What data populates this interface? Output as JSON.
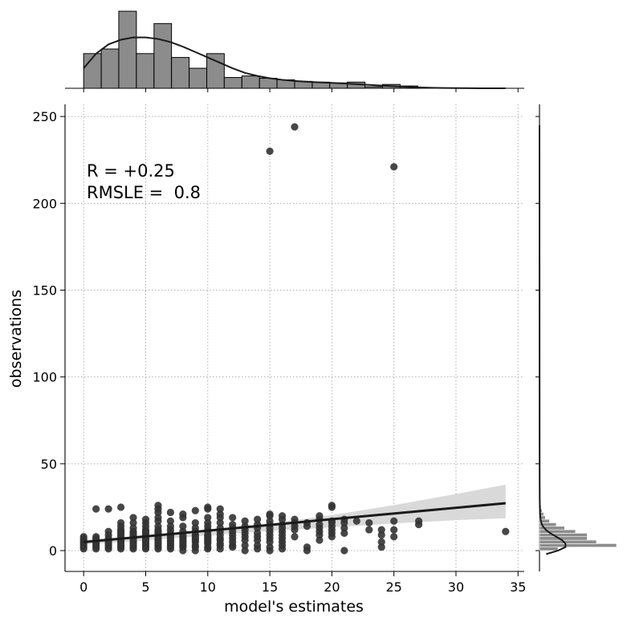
{
  "chart_data": {
    "type": "scatter",
    "xlabel": "model's estimates",
    "ylabel": "observations",
    "xlim": [
      -1.5,
      35.5
    ],
    "ylim": [
      -12,
      257
    ],
    "xticks": [
      0,
      5,
      10,
      15,
      20,
      25,
      30,
      35
    ],
    "yticks": [
      0,
      50,
      100,
      150,
      200,
      250
    ],
    "grid": true,
    "annotations": [
      "R = +0.25",
      "RMSLE =  0.8"
    ],
    "colors": {
      "points": "#333333",
      "line": "#1a1a1a",
      "band": "#d9d9d9",
      "hist": "#8c8c8c",
      "edge": "#000000"
    },
    "points": [
      [
        0,
        1
      ],
      [
        0,
        2
      ],
      [
        0,
        3
      ],
      [
        0,
        4
      ],
      [
        0,
        5
      ],
      [
        0,
        6
      ],
      [
        0,
        7
      ],
      [
        0,
        8
      ],
      [
        1,
        1
      ],
      [
        1,
        2
      ],
      [
        1,
        3
      ],
      [
        1,
        4
      ],
      [
        1,
        5
      ],
      [
        1,
        6
      ],
      [
        1,
        7
      ],
      [
        1,
        8
      ],
      [
        1,
        24
      ],
      [
        2,
        1
      ],
      [
        2,
        2
      ],
      [
        2,
        3
      ],
      [
        2,
        4
      ],
      [
        2,
        5
      ],
      [
        2,
        6
      ],
      [
        2,
        7
      ],
      [
        2,
        9
      ],
      [
        2,
        11
      ],
      [
        2,
        24
      ],
      [
        3,
        1
      ],
      [
        3,
        2
      ],
      [
        3,
        3
      ],
      [
        3,
        4
      ],
      [
        3,
        5
      ],
      [
        3,
        6
      ],
      [
        3,
        7
      ],
      [
        3,
        8
      ],
      [
        3,
        9
      ],
      [
        3,
        10
      ],
      [
        3,
        11
      ],
      [
        3,
        12
      ],
      [
        3,
        14
      ],
      [
        3,
        16
      ],
      [
        3,
        25
      ],
      [
        4,
        1
      ],
      [
        4,
        2
      ],
      [
        4,
        3
      ],
      [
        4,
        4
      ],
      [
        4,
        5
      ],
      [
        4,
        6
      ],
      [
        4,
        7
      ],
      [
        4,
        8
      ],
      [
        4,
        9
      ],
      [
        4,
        10
      ],
      [
        4,
        11
      ],
      [
        4,
        13
      ],
      [
        4,
        16
      ],
      [
        4,
        19
      ],
      [
        5,
        1
      ],
      [
        5,
        2
      ],
      [
        5,
        3
      ],
      [
        5,
        4
      ],
      [
        5,
        5
      ],
      [
        5,
        6
      ],
      [
        5,
        7
      ],
      [
        5,
        8
      ],
      [
        5,
        9
      ],
      [
        5,
        10
      ],
      [
        5,
        11
      ],
      [
        5,
        12
      ],
      [
        5,
        14
      ],
      [
        5,
        16
      ],
      [
        5,
        18
      ],
      [
        6,
        1
      ],
      [
        6,
        2
      ],
      [
        6,
        3
      ],
      [
        6,
        4
      ],
      [
        6,
        5
      ],
      [
        6,
        6
      ],
      [
        6,
        7
      ],
      [
        6,
        8
      ],
      [
        6,
        9
      ],
      [
        6,
        10
      ],
      [
        6,
        11
      ],
      [
        6,
        12
      ],
      [
        6,
        14
      ],
      [
        6,
        17
      ],
      [
        6,
        19
      ],
      [
        6,
        22
      ],
      [
        6,
        24
      ],
      [
        6,
        26
      ],
      [
        7,
        1
      ],
      [
        7,
        2
      ],
      [
        7,
        3
      ],
      [
        7,
        4
      ],
      [
        7,
        5
      ],
      [
        7,
        6
      ],
      [
        7,
        7
      ],
      [
        7,
        8
      ],
      [
        7,
        9
      ],
      [
        7,
        10
      ],
      [
        7,
        12
      ],
      [
        7,
        14
      ],
      [
        7,
        17
      ],
      [
        7,
        22
      ],
      [
        8,
        0
      ],
      [
        8,
        2
      ],
      [
        8,
        3
      ],
      [
        8,
        4
      ],
      [
        8,
        5
      ],
      [
        8,
        6
      ],
      [
        8,
        7
      ],
      [
        8,
        8
      ],
      [
        8,
        9
      ],
      [
        8,
        11
      ],
      [
        8,
        14
      ],
      [
        8,
        19
      ],
      [
        8,
        21
      ],
      [
        9,
        0
      ],
      [
        9,
        2
      ],
      [
        9,
        3
      ],
      [
        9,
        5
      ],
      [
        9,
        6
      ],
      [
        9,
        7
      ],
      [
        9,
        8
      ],
      [
        9,
        9
      ],
      [
        9,
        11
      ],
      [
        9,
        13
      ],
      [
        9,
        16
      ],
      [
        9,
        23
      ],
      [
        10,
        1
      ],
      [
        10,
        2
      ],
      [
        10,
        4
      ],
      [
        10,
        5
      ],
      [
        10,
        6
      ],
      [
        10,
        7
      ],
      [
        10,
        8
      ],
      [
        10,
        9
      ],
      [
        10,
        11
      ],
      [
        10,
        12
      ],
      [
        10,
        14
      ],
      [
        10,
        16
      ],
      [
        10,
        19
      ],
      [
        10,
        24
      ],
      [
        10,
        25
      ],
      [
        11,
        1
      ],
      [
        11,
        3
      ],
      [
        11,
        4
      ],
      [
        11,
        6
      ],
      [
        11,
        7
      ],
      [
        11,
        9
      ],
      [
        11,
        11
      ],
      [
        11,
        13
      ],
      [
        11,
        16
      ],
      [
        11,
        19
      ],
      [
        11,
        21
      ],
      [
        11,
        24
      ],
      [
        12,
        2
      ],
      [
        12,
        3
      ],
      [
        12,
        5
      ],
      [
        12,
        7
      ],
      [
        12,
        9
      ],
      [
        12,
        11
      ],
      [
        12,
        13
      ],
      [
        12,
        15
      ],
      [
        12,
        19
      ],
      [
        13,
        0
      ],
      [
        13,
        3
      ],
      [
        13,
        6
      ],
      [
        13,
        8
      ],
      [
        13,
        10
      ],
      [
        13,
        12
      ],
      [
        13,
        14
      ],
      [
        13,
        17
      ],
      [
        14,
        1
      ],
      [
        14,
        3
      ],
      [
        14,
        6
      ],
      [
        14,
        8
      ],
      [
        14,
        10
      ],
      [
        14,
        13
      ],
      [
        14,
        15
      ],
      [
        14,
        18
      ],
      [
        15,
        0
      ],
      [
        15,
        2
      ],
      [
        15,
        5
      ],
      [
        15,
        7
      ],
      [
        15,
        9
      ],
      [
        15,
        11
      ],
      [
        15,
        13
      ],
      [
        15,
        15
      ],
      [
        15,
        17
      ],
      [
        15,
        20
      ],
      [
        15,
        21
      ],
      [
        15,
        230
      ],
      [
        16,
        1
      ],
      [
        16,
        3
      ],
      [
        16,
        5
      ],
      [
        16,
        7
      ],
      [
        16,
        9
      ],
      [
        16,
        11
      ],
      [
        16,
        13
      ],
      [
        16,
        15
      ],
      [
        16,
        18
      ],
      [
        16,
        20
      ],
      [
        17,
        8
      ],
      [
        17,
        12
      ],
      [
        17,
        14
      ],
      [
        17,
        16
      ],
      [
        17,
        18
      ],
      [
        17,
        244
      ],
      [
        18,
        0
      ],
      [
        18,
        2
      ],
      [
        18,
        14
      ],
      [
        18,
        16
      ],
      [
        19,
        6
      ],
      [
        19,
        9
      ],
      [
        19,
        11
      ],
      [
        19,
        13
      ],
      [
        19,
        15
      ],
      [
        19,
        18
      ],
      [
        19,
        20
      ],
      [
        20,
        8
      ],
      [
        20,
        10
      ],
      [
        20,
        12
      ],
      [
        20,
        14
      ],
      [
        20,
        16
      ],
      [
        20,
        17
      ],
      [
        20,
        25
      ],
      [
        20,
        26
      ],
      [
        21,
        0
      ],
      [
        21,
        10
      ],
      [
        21,
        13
      ],
      [
        21,
        16
      ],
      [
        21,
        18
      ],
      [
        22,
        17
      ],
      [
        23,
        12
      ],
      [
        23,
        16
      ],
      [
        24,
        2
      ],
      [
        24,
        5
      ],
      [
        24,
        9
      ],
      [
        24,
        12
      ],
      [
        25,
        8
      ],
      [
        25,
        12
      ],
      [
        25,
        17
      ],
      [
        25,
        221
      ],
      [
        27,
        15
      ],
      [
        27,
        17
      ],
      [
        34,
        11
      ]
    ],
    "fit_line": {
      "x": [
        0,
        34
      ],
      "y": [
        4.9,
        27.3
      ]
    },
    "confidence_band": {
      "x": [
        0,
        5,
        10,
        15,
        20,
        25,
        30,
        34
      ],
      "lower": [
        3.5,
        5.8,
        8.8,
        11.3,
        13.4,
        15.6,
        17.5,
        18.6
      ],
      "upper": [
        6.3,
        8.6,
        11.5,
        15.7,
        20.4,
        26.2,
        32.6,
        38.0
      ]
    },
    "top_histogram": {
      "bin_edges": [
        0,
        1.42,
        2.83,
        4.25,
        5.67,
        7.08,
        8.5,
        9.92,
        11.33,
        12.75,
        14.17,
        15.58,
        17,
        18.42,
        19.83,
        21.25,
        22.67,
        24.08,
        25.5,
        26.92,
        28.33,
        29.75,
        31.17,
        32.58,
        34
      ],
      "counts": [
        45,
        51,
        100,
        45,
        84,
        40,
        26,
        45,
        14,
        16,
        13,
        11,
        9,
        8,
        7,
        8,
        2,
        5,
        3,
        1,
        0,
        0,
        0,
        0
      ],
      "kde_x": [
        0,
        1,
        2,
        3,
        4,
        5,
        6,
        7,
        8,
        9,
        10,
        11,
        12,
        13,
        14,
        15,
        16,
        17,
        18,
        19,
        20,
        21,
        22,
        23,
        24,
        25,
        26,
        27,
        28,
        29,
        30,
        31,
        32,
        33,
        34
      ],
      "kde_y": [
        26,
        45,
        57,
        63,
        66,
        66,
        64,
        60,
        54,
        47,
        40,
        33,
        26,
        20,
        16,
        13,
        11,
        9.5,
        8.5,
        7.7,
        7,
        6.2,
        5.3,
        4.4,
        3.5,
        2.6,
        1.8,
        1.2,
        0.7,
        0.4,
        0.2,
        0.1,
        0.05,
        0.02,
        0
      ]
    },
    "right_histogram": {
      "bin_edges": [
        0,
        2,
        4,
        6,
        8,
        10,
        12,
        14,
        16,
        18,
        20,
        22,
        24,
        26
      ],
      "counts": [
        22,
        92,
        68,
        57,
        57,
        43,
        30,
        20,
        12,
        7,
        5,
        3,
        2
      ],
      "kde_y": [
        -2,
        0,
        2,
        4,
        6,
        8,
        10,
        12,
        14,
        16,
        18,
        20,
        22,
        25,
        30,
        40,
        60,
        100,
        150,
        200,
        245
      ],
      "kde_x": [
        8,
        22,
        31,
        31,
        27,
        20,
        13,
        7.5,
        4,
        2.2,
        1.3,
        0.9,
        0.7,
        0.5,
        0.3,
        0.2,
        0.15,
        0.1,
        0.06,
        0.03,
        0.01
      ]
    }
  }
}
